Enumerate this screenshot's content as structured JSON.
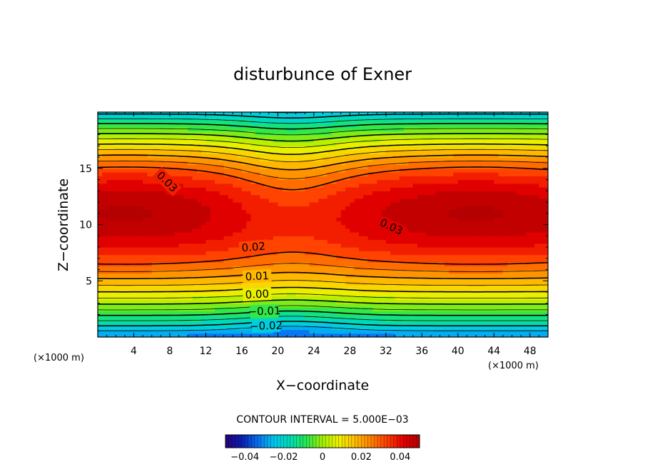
{
  "chart_data": {
    "type": "heatmap",
    "title": "disturbunce of Exner",
    "xlabel": "X−coordinate",
    "ylabel": "Z−coordinate",
    "x_unit": "(×1000 m)",
    "z_unit": "(×1000 m)",
    "xlim": [
      0,
      50
    ],
    "ylim": [
      0,
      20
    ],
    "x_ticks": [
      4,
      8,
      12,
      16,
      20,
      24,
      28,
      32,
      36,
      40,
      44,
      48
    ],
    "x_tick_labels": [
      "4",
      "8",
      "12",
      "16",
      "20",
      "24",
      "28",
      "32",
      "36",
      "40",
      "44",
      "48"
    ],
    "y_ticks": [
      5,
      10,
      15
    ],
    "y_tick_labels": [
      "5",
      "10",
      "15"
    ],
    "contour_interval_text": "CONTOUR INTERVAL = 5.000E−03",
    "contour_interval": 0.005,
    "contour_levels": [
      -0.025,
      -0.02,
      -0.015,
      -0.01,
      -0.005,
      0.0,
      0.005,
      0.01,
      0.015,
      0.02,
      0.025,
      0.03
    ],
    "negative_contours_dashed": true,
    "contour_labels": [
      {
        "text": "0.03",
        "value": 0.03,
        "x": 7.7,
        "z": 13.8,
        "angle": 45
      },
      {
        "text": "0.03",
        "value": 0.03,
        "x": 32.6,
        "z": 9.8,
        "angle": 25
      },
      {
        "text": "0.02",
        "value": 0.02,
        "x": 17.3,
        "z": 8.0,
        "angle": -5
      },
      {
        "text": "0.01",
        "value": 0.01,
        "x": 17.7,
        "z": 5.4,
        "angle": -3
      },
      {
        "text": "0.00",
        "value": 0.0,
        "x": 17.7,
        "z": 3.8,
        "angle": -3
      },
      {
        "text": "−0.01",
        "value": -0.01,
        "x": 18.5,
        "z": 2.3,
        "angle": -2
      },
      {
        "text": "−0.02",
        "value": -0.02,
        "x": 18.7,
        "z": 1.0,
        "angle": -2
      }
    ],
    "field_features": {
      "maxima": [
        {
          "x": 3,
          "z": 11.5,
          "value": 0.04
        },
        {
          "x": 42,
          "z": 11.5,
          "value": 0.04
        }
      ],
      "saddle": {
        "x": 21.5,
        "z": 13.5,
        "value": 0.026
      },
      "minimum": {
        "x": 20,
        "z": 0,
        "value": -0.03
      }
    },
    "colorbar": {
      "range": [
        -0.05,
        0.05
      ],
      "ticks": [
        -0.04,
        -0.02,
        0,
        0.02,
        0.04
      ],
      "tick_labels": [
        "−0.04",
        "−0.02",
        "0",
        "0.02",
        "0.04"
      ],
      "colors": [
        "#2a0078",
        "#0a1eb4",
        "#0a6ef0",
        "#00c8f0",
        "#00dcb4",
        "#28e650",
        "#a0f000",
        "#f0f000",
        "#ffbe00",
        "#ff8200",
        "#ff3c00",
        "#e60000",
        "#b40000"
      ]
    }
  }
}
